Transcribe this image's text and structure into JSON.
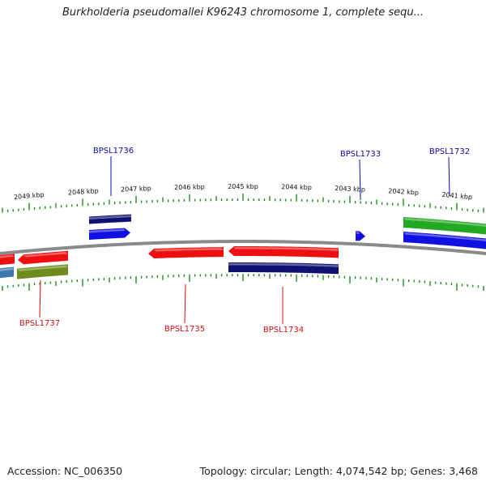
{
  "title": "Burkholderia pseudomallei K96243 chromosome 1, complete sequ...",
  "footer": {
    "accession": "Accession: NC_006350",
    "summary": "Topology: circular; Length: 4,074,542 bp; Genes: 3,468"
  },
  "colors": {
    "backbone": "#8a8a8a",
    "tick": "#1e8c1e",
    "label_top": "#0a0aa8",
    "label_bottom": "#d01010",
    "gene_red": "#ee1010",
    "gene_blue": "#1010e0",
    "gene_navy": "#101070",
    "gene_green": "#22a822",
    "gene_olive": "#6e8c1c",
    "gene_steel": "#3c78b0"
  },
  "scale": {
    "ticks_kbp": [
      {
        "label": "2049 kbp"
      },
      {
        "label": "2048 kbp"
      },
      {
        "label": "2047 kbp"
      },
      {
        "label": "2046 kbp"
      },
      {
        "label": "2045 kbp"
      },
      {
        "label": "2044 kbp"
      },
      {
        "label": "2043 kbp"
      },
      {
        "label": "2042 kbp"
      },
      {
        "label": "2041 kbp"
      }
    ]
  },
  "gene_labels": [
    {
      "text": "BPSL1736",
      "strand": "top"
    },
    {
      "text": "BPSL1733",
      "strand": "top"
    },
    {
      "text": "BPSL1732",
      "strand": "top"
    },
    {
      "text": "BPSL1737",
      "strand": "bottom"
    },
    {
      "text": "BPSL1735",
      "strand": "bottom"
    },
    {
      "text": "BPSL1734",
      "strand": "bottom"
    }
  ]
}
